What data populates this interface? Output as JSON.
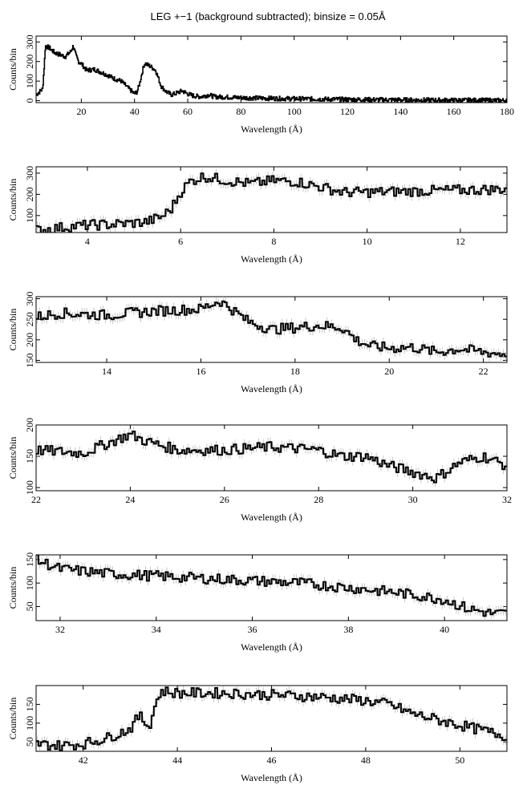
{
  "figure_title": "LEG +−1 (background subtracted); binsize = 0.05Å",
  "chart_data": [
    {
      "type": "line",
      "xlabel": "Wavelength (Å)",
      "ylabel": "Counts/bin",
      "xlim": [
        3,
        180
      ],
      "ylim": [
        -10,
        330
      ],
      "xticks": [
        20,
        40,
        60,
        80,
        100,
        120,
        140,
        160,
        180
      ],
      "yticks": [
        0,
        100,
        200,
        300
      ],
      "ytick_labels": [
        "0",
        "100",
        "200",
        "300"
      ],
      "grid": false,
      "series": [
        {
          "x": [
            3,
            5.5,
            6.2,
            6.5,
            8,
            10,
            12,
            14,
            16,
            17,
            18,
            19,
            20,
            22,
            25,
            30,
            32,
            35,
            38,
            40,
            41,
            42,
            43,
            43.5,
            44,
            46,
            48,
            50,
            52,
            54,
            56,
            58,
            60,
            62,
            65,
            68,
            70,
            75,
            80,
            90,
            100,
            110,
            120,
            130,
            140,
            150,
            160,
            170,
            180
          ],
          "y": [
            30,
            60,
            200,
            280,
            270,
            245,
            235,
            225,
            250,
            280,
            230,
            200,
            190,
            155,
            160,
            130,
            115,
            100,
            60,
            35,
            45,
            90,
            150,
            180,
            190,
            175,
            155,
            75,
            45,
            30,
            40,
            50,
            35,
            25,
            20,
            30,
            20,
            18,
            15,
            12,
            10,
            8,
            6,
            5,
            4,
            3,
            2,
            2,
            1
          ]
        }
      ]
    },
    {
      "type": "line",
      "xlabel": "Wavelength (Å)",
      "ylabel": "Counts/bin",
      "xlim": [
        2.9,
        13.0
      ],
      "ylim": [
        20,
        330
      ],
      "xticks": [
        4,
        6,
        8,
        10,
        12
      ],
      "yticks": [
        100,
        200,
        300
      ],
      "ytick_labels": [
        "100",
        "200",
        "300"
      ],
      "grid": false,
      "series": [
        {
          "x": [
            2.9,
            3.5,
            4.0,
            4.5,
            5.0,
            5.3,
            5.6,
            5.8,
            6.0,
            6.2,
            6.5,
            7.0,
            7.5,
            8.0,
            8.5,
            9.0,
            9.5,
            10.0,
            11.0,
            12.0,
            13.0
          ],
          "y": [
            30,
            45,
            55,
            58,
            65,
            72,
            95,
            130,
            210,
            260,
            285,
            265,
            250,
            265,
            260,
            235,
            210,
            210,
            215,
            220,
            225
          ]
        }
      ]
    },
    {
      "type": "line",
      "xlabel": "Wavelength (Å)",
      "ylabel": "Counts/bin",
      "xlim": [
        12.5,
        22.5
      ],
      "ylim": [
        145,
        305
      ],
      "xticks": [
        14,
        16,
        18,
        20,
        22
      ],
      "yticks": [
        150,
        200,
        250,
        300
      ],
      "ytick_labels": [
        "150",
        "200",
        "250",
        "300"
      ],
      "grid": false,
      "series": [
        {
          "x": [
            12.5,
            13.0,
            14.0,
            15.0,
            16.0,
            16.4,
            16.6,
            17.0,
            17.5,
            18.0,
            18.5,
            19.0,
            19.3,
            19.6,
            20.0,
            20.5,
            21.0,
            21.5,
            22.0,
            22.5
          ],
          "y": [
            255,
            265,
            260,
            270,
            275,
            295,
            280,
            245,
            225,
            230,
            235,
            230,
            200,
            185,
            180,
            182,
            170,
            178,
            170,
            165
          ]
        }
      ]
    },
    {
      "type": "line",
      "xlabel": "Wavelength (Å)",
      "ylabel": "Counts/bin",
      "xlim": [
        22,
        32
      ],
      "ylim": [
        95,
        200
      ],
      "xticks": [
        22,
        24,
        26,
        28,
        30,
        32
      ],
      "yticks": [
        100,
        150,
        200
      ],
      "ytick_labels": [
        "100",
        "150",
        "200"
      ],
      "grid": false,
      "series": [
        {
          "x": [
            22,
            23,
            23.5,
            24,
            24.3,
            25,
            26,
            27,
            28,
            28.5,
            29,
            29.5,
            30,
            30.5,
            31,
            31.5,
            32
          ],
          "y": [
            160,
            155,
            170,
            185,
            175,
            160,
            160,
            165,
            160,
            150,
            150,
            135,
            125,
            115,
            140,
            150,
            135
          ]
        }
      ]
    },
    {
      "type": "line",
      "xlabel": "Wavelength (Å)",
      "ylabel": "Counts/bin",
      "xlim": [
        31.5,
        41.3
      ],
      "ylim": [
        20,
        160
      ],
      "xticks": [
        32,
        34,
        36,
        38,
        40
      ],
      "yticks": [
        50,
        100,
        150
      ],
      "ytick_labels": [
        "50",
        "100",
        "150"
      ],
      "grid": false,
      "series": [
        {
          "x": [
            31.5,
            32,
            33,
            34,
            35,
            36,
            37,
            38,
            39,
            40,
            40.5,
            41,
            41.3
          ],
          "y": [
            150,
            130,
            120,
            115,
            110,
            105,
            100,
            90,
            80,
            65,
            45,
            35,
            35
          ]
        }
      ]
    },
    {
      "type": "line",
      "xlabel": "Wavelength (Å)",
      "ylabel": "Counts/bin",
      "xlim": [
        41,
        51
      ],
      "ylim": [
        25,
        200
      ],
      "xticks": [
        42,
        44,
        46,
        48,
        50
      ],
      "yticks": [
        50,
        100,
        150
      ],
      "ytick_labels": [
        "50",
        "100",
        "150"
      ],
      "grid": false,
      "series": [
        {
          "x": [
            41,
            41.5,
            42,
            42.5,
            43,
            43.2,
            43.4,
            43.6,
            43.7,
            44,
            45,
            46,
            47,
            48,
            48.5,
            49,
            49.5,
            50,
            50.5,
            51
          ],
          "y": [
            45,
            40,
            45,
            60,
            85,
            120,
            90,
            175,
            185,
            180,
            180,
            175,
            170,
            160,
            150,
            125,
            110,
            95,
            80,
            65
          ]
        }
      ]
    }
  ]
}
